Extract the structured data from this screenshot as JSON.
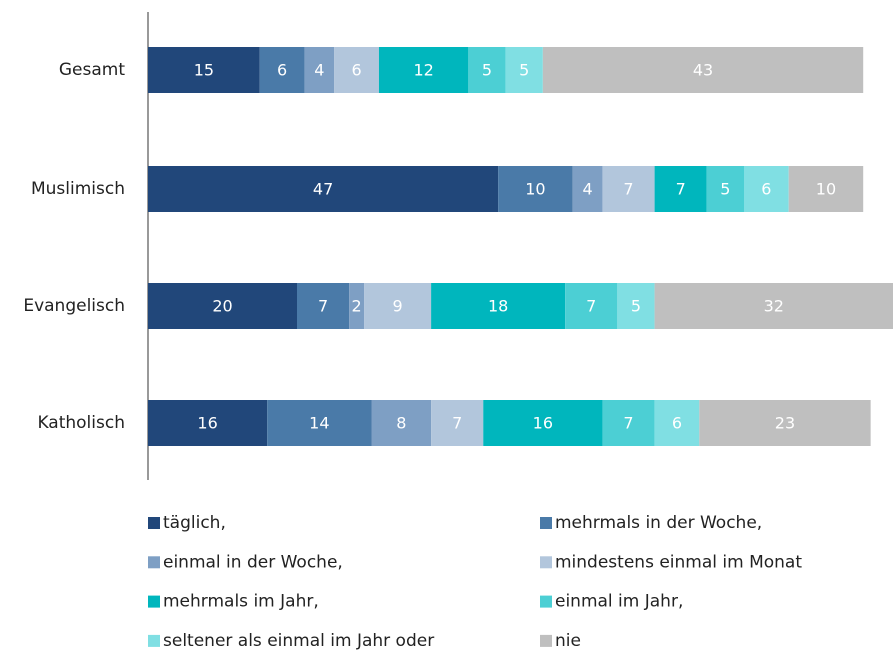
{
  "chart_data": {
    "type": "stacked-bar-horizontal",
    "categories": [
      "Gesamt",
      "Muslimisch",
      "Evangelisch",
      "Katholisch"
    ],
    "series": [
      {
        "name": "täglich,",
        "color": "#21477a",
        "values": [
          15,
          47,
          20,
          16
        ]
      },
      {
        "name": "mehrmals in der Woche,",
        "color": "#4a7aa8",
        "values": [
          6,
          10,
          7,
          14
        ]
      },
      {
        "name": "einmal in der Woche,",
        "color": "#7e9fc4",
        "values": [
          4,
          4,
          2,
          8
        ]
      },
      {
        "name": "mindestens einmal im Monat",
        "color": "#b2c6dc",
        "values": [
          6,
          7,
          9,
          7
        ]
      },
      {
        "name": "mehrmals im Jahr,",
        "color": "#00b6bd",
        "values": [
          12,
          7,
          18,
          16
        ]
      },
      {
        "name": "einmal im Jahr,",
        "color": "#4ccfd4",
        "values": [
          5,
          5,
          7,
          7
        ]
      },
      {
        "name": "seltener als einmal im Jahr oder",
        "color": "#80dfe3",
        "values": [
          5,
          6,
          5,
          6
        ]
      },
      {
        "name": "nie",
        "color": "#bfbfbf",
        "values": [
          43,
          10,
          32,
          23
        ]
      }
    ]
  }
}
